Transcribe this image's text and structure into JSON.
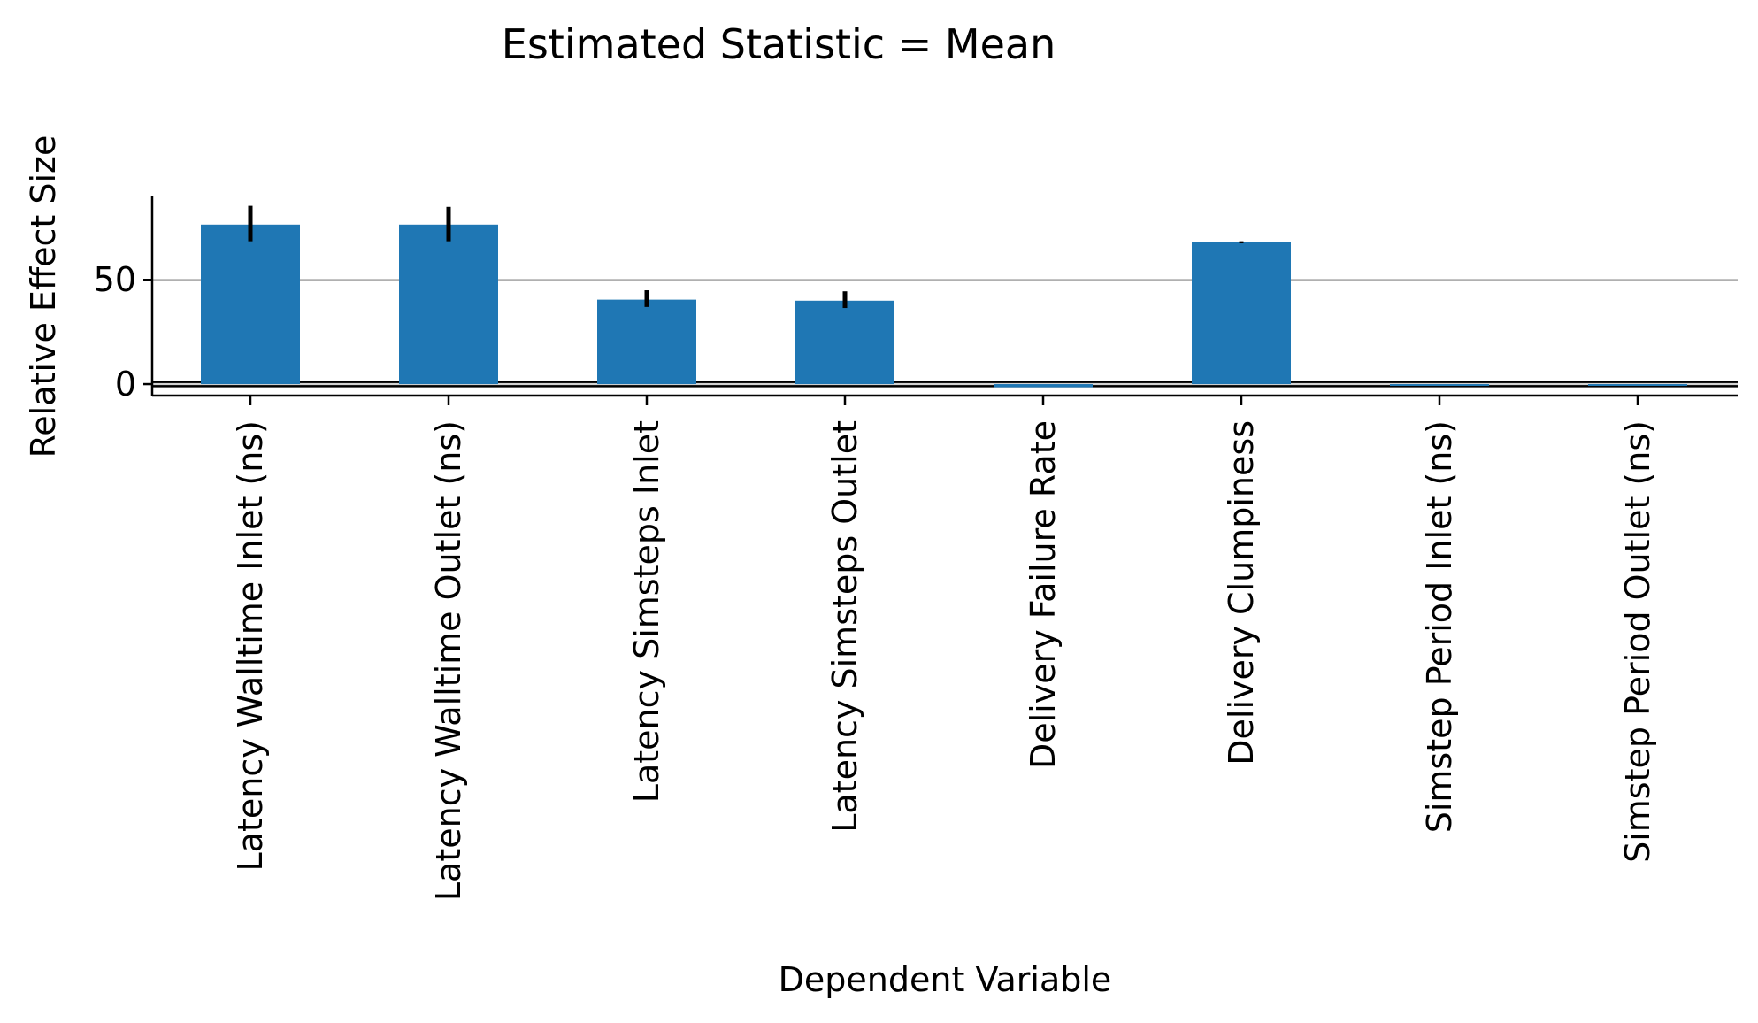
{
  "chart_data": {
    "type": "bar",
    "title": "Estimated Statistic = Mean",
    "xlabel": "Dependent Variable",
    "ylabel": "Relative Effect Size",
    "categories": [
      "Latency Walltime Inlet (ns)",
      "Latency Walltime Outlet (ns)",
      "Latency Simsteps Inlet",
      "Latency Simsteps Outlet",
      "Delivery Failure Rate",
      "Delivery Clumpiness",
      "Simstep Period Inlet (ns)",
      "Simstep Period Outlet (ns)"
    ],
    "values": [
      76.5,
      76.5,
      40.5,
      40,
      -1.5,
      68,
      -0.5,
      -0.5
    ],
    "error_low": [
      68.5,
      68.5,
      37,
      36.5,
      -1.5,
      67.5,
      -0.5,
      -0.5
    ],
    "error_high": [
      85.5,
      85,
      45,
      44.5,
      -1.5,
      68.5,
      -0.5,
      -0.5
    ],
    "yticks": [
      0,
      50
    ],
    "ylim": [
      -5.5,
      90
    ],
    "gridlines_y": [
      50
    ],
    "reference_band": [
      -1,
      1
    ],
    "grid": "horizontal",
    "bar_color": "#1f77b4",
    "error_color": "#000000",
    "grid_color": "#b0b0b0"
  }
}
